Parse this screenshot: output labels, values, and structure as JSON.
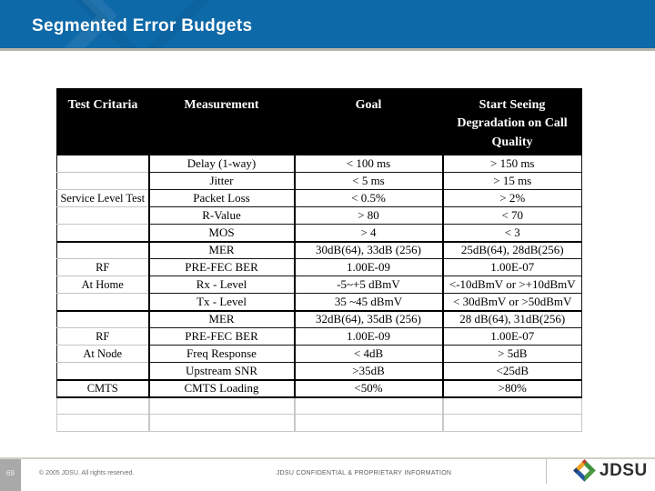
{
  "slide": {
    "title": "Segmented Error Budgets",
    "number": "69",
    "copyright": "© 2005 JDSU. All rights reserved.",
    "confidential": "JDSU CONFIDENTIAL & PROPRIETARY INFORMATION",
    "logo_text": "JDSU"
  },
  "colors": {
    "title_bar_blue": "#0e69a8",
    "title_text": "#ffffff",
    "table_header_bg": "#000000",
    "table_header_text": "#ffffff",
    "table_grid_dark": "#141414",
    "table_grid_light": "#c3c3c3",
    "slide_number_bg": "#a9a9a9",
    "footer_text_gray": "#6e6e6e",
    "logo_orange": "#eda224",
    "logo_red": "#c23b2e",
    "logo_green": "#3f9140",
    "logo_green_dark": "#4d9a42",
    "logo_blue": "#2458a0",
    "logo_navy": "#1c3e77",
    "logo_text_color": "#2e2e2e"
  },
  "table": {
    "columns": [
      "Test Critaria",
      "Measurement",
      "Goal",
      "Start Seeing Degradation on Call Quality"
    ],
    "rows": [
      {
        "criteria": "",
        "measurement": "Delay (1-way)",
        "goal": "< 100 ms",
        "degradation": "> 150 ms",
        "group_start": false,
        "group_end": false,
        "empty": false
      },
      {
        "criteria": "",
        "measurement": "Jitter",
        "goal": "< 5 ms",
        "degradation": "> 15 ms",
        "group_start": false,
        "group_end": false,
        "empty": false
      },
      {
        "criteria": "Service Level Test",
        "measurement": "Packet Loss",
        "goal": "< 0.5%",
        "degradation": "> 2%",
        "group_start": false,
        "group_end": false,
        "empty": false
      },
      {
        "criteria": "",
        "measurement": "R-Value",
        "goal": "> 80",
        "degradation": "< 70",
        "group_start": false,
        "group_end": false,
        "empty": false
      },
      {
        "criteria": "",
        "measurement": "MOS",
        "goal": "> 4",
        "degradation": "< 3",
        "group_start": false,
        "group_end": false,
        "empty": false
      },
      {
        "criteria": "",
        "measurement": "MER",
        "goal": "30dB(64), 33dB (256)",
        "degradation": "25dB(64), 28dB(256)",
        "group_start": true,
        "group_end": false,
        "empty": false
      },
      {
        "criteria": "RF",
        "measurement": "PRE-FEC BER",
        "goal": "1.00E-09",
        "degradation": "1.00E-07",
        "group_start": false,
        "group_end": false,
        "empty": false
      },
      {
        "criteria": "At Home",
        "measurement": "Rx - Level",
        "goal": "-5~+5 dBmV",
        "degradation": "<-10dBmV or >+10dBmV",
        "group_start": false,
        "group_end": false,
        "empty": false
      },
      {
        "criteria": "",
        "measurement": "Tx - Level",
        "goal": "35 ~45 dBmV",
        "degradation": "< 30dBmV or >50dBmV",
        "group_start": false,
        "group_end": false,
        "empty": false
      },
      {
        "criteria": "",
        "measurement": "MER",
        "goal": "32dB(64), 35dB (256)",
        "degradation": "28 dB(64), 31dB(256)",
        "group_start": true,
        "group_end": false,
        "empty": false
      },
      {
        "criteria": "RF",
        "measurement": "PRE-FEC BER",
        "goal": "1.00E-09",
        "degradation": "1.00E-07",
        "group_start": false,
        "group_end": false,
        "empty": false
      },
      {
        "criteria": "At Node",
        "measurement": "Freq Response",
        "goal": "< 4dB",
        "degradation": "> 5dB",
        "group_start": false,
        "group_end": false,
        "empty": false
      },
      {
        "criteria": "",
        "measurement": "Upstream SNR",
        "goal": ">35dB",
        "degradation": "<25dB",
        "group_start": false,
        "group_end": false,
        "empty": false
      },
      {
        "criteria": "CMTS",
        "measurement": "CMTS Loading",
        "goal": "<50%",
        "degradation": ">80%",
        "group_start": true,
        "group_end": true,
        "empty": false
      },
      {
        "criteria": "",
        "measurement": "",
        "goal": "",
        "degradation": "",
        "group_start": false,
        "group_end": false,
        "empty": true
      },
      {
        "criteria": "",
        "measurement": "",
        "goal": "",
        "degradation": "",
        "group_start": false,
        "group_end": false,
        "empty": true
      }
    ]
  }
}
